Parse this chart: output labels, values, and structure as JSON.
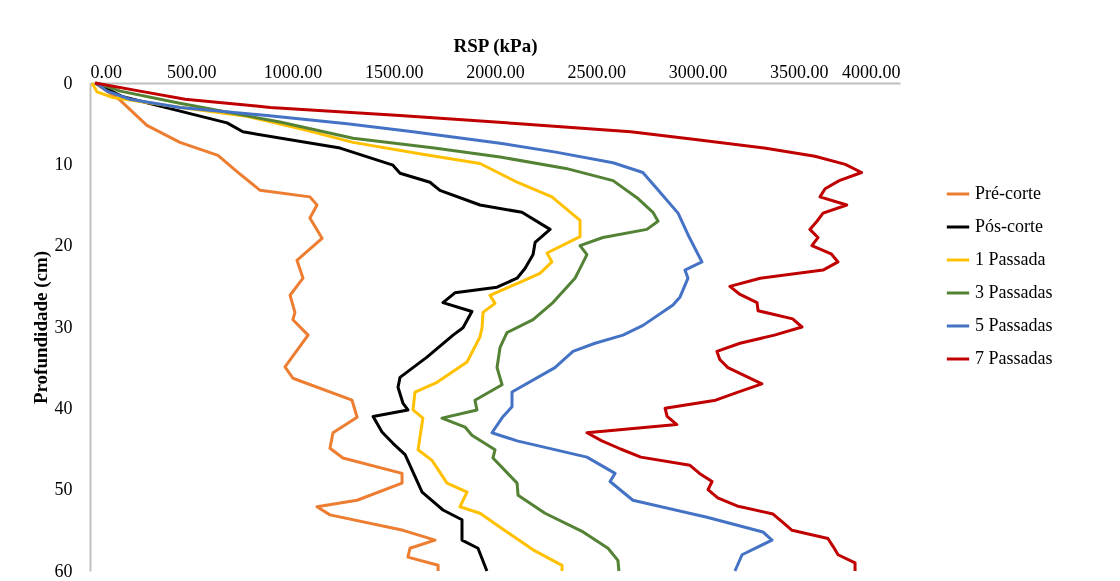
{
  "chart_data": {
    "type": "line",
    "xlabel": "RSP (kPa)",
    "ylabel": "Profundidade (cm)",
    "xlim": [
      0,
      4000
    ],
    "xticks": [
      {
        "value": 0,
        "label": "0.00"
      },
      {
        "value": 500,
        "label": "500.00"
      },
      {
        "value": 1000,
        "label": "1000.00"
      },
      {
        "value": 1500,
        "label": "1500.00"
      },
      {
        "value": 2000,
        "label": "2000.00"
      },
      {
        "value": 2500,
        "label": "2500.00"
      },
      {
        "value": 3000,
        "label": "3000.00"
      },
      {
        "value": 3500,
        "label": "3500.00"
      },
      {
        "value": 4000,
        "label": "4000.00"
      }
    ],
    "ylim": [
      60,
      0
    ],
    "yticks": [
      0,
      10,
      20,
      30,
      40,
      50,
      60
    ],
    "grid": false,
    "legend": "right",
    "marker": "none",
    "line_style": "solid",
    "series": [
      {
        "name": "Pré-corte",
        "color": "#ed7d31",
        "x": [
          25,
          148,
          281,
          444,
          632,
          726,
          840,
          1086,
          1121,
          1086,
          1146,
          1022,
          1052,
          988,
          1012,
          1002,
          1077,
          963,
          1002,
          1294,
          1319,
          1200,
          1185,
          1249,
          1541,
          1541,
          1319,
          1121,
          1185,
          1546,
          1704,
          1580,
          1570,
          1719,
          1719
        ],
        "values": [
          0,
          2.1,
          5.2,
          7.3,
          8.9,
          10.9,
          13.2,
          14,
          15,
          16.6,
          19.1,
          21.8,
          24,
          26.1,
          28.2,
          29.1,
          31,
          34.9,
          36.3,
          39,
          41.1,
          43,
          44.9,
          46.1,
          48,
          49.2,
          51.3,
          52.1,
          53.1,
          55,
          56.2,
          57.2,
          58.3,
          59.3,
          60
        ]
      },
      {
        "name": "Pós-corte",
        "color": "#000000",
        "x": [
          25,
          163,
          420,
          677,
          755,
          1235,
          1496,
          1531,
          1679,
          1728,
          1926,
          2133,
          2272,
          2198,
          2188,
          2148,
          2109,
          2010,
          1802,
          1743,
          1886,
          1842,
          1793,
          1664,
          1531,
          1521,
          1546,
          1570,
          1398,
          1442,
          1496,
          1556,
          1640,
          1743,
          1837,
          1837,
          1916,
          1960
        ],
        "values": [
          0,
          1.7,
          3.3,
          4.9,
          6,
          8,
          10.1,
          11.1,
          12.2,
          13.2,
          15,
          15.9,
          18,
          19.6,
          21.1,
          22.8,
          24,
          25.1,
          25.8,
          27,
          28.1,
          30.1,
          31,
          33.7,
          36.2,
          37.4,
          39.4,
          40.2,
          41,
          42.9,
          44.3,
          45.7,
          50.3,
          52.5,
          53.7,
          56.2,
          57.2,
          60
        ]
      },
      {
        "name": "1 Passada",
        "color": "#ffc000",
        "x": [
          10,
          35,
          114,
          450,
          775,
          1050,
          1299,
          1650,
          1926,
          2109,
          2281,
          2420,
          2420,
          2257,
          2281,
          2222,
          2123,
          1975,
          2000,
          1941,
          1936,
          1926,
          1862,
          1714,
          1605,
          1595,
          1644,
          1620,
          1689,
          1763,
          1862,
          1827,
          1926,
          2059,
          2188,
          2331,
          2331
        ],
        "values": [
          0,
          1.1,
          1.8,
          3,
          4.1,
          5.7,
          7.3,
          8.8,
          9.9,
          12.2,
          14,
          16.9,
          18.9,
          20.9,
          22,
          23.4,
          24.5,
          26.1,
          27.1,
          28.2,
          30.1,
          31.2,
          34.3,
          36.8,
          38,
          40.2,
          41.2,
          45.1,
          46.4,
          49.2,
          50.3,
          52.1,
          52.9,
          55.2,
          57.4,
          59.3,
          60
        ]
      },
      {
        "name": "3 Passadas",
        "color": "#548235",
        "x": [
          30,
          150,
          444,
          938,
          1299,
          1700,
          2025,
          2350,
          2583,
          2701,
          2780,
          2805,
          2750,
          2533,
          2420,
          2454,
          2420,
          2395,
          2286,
          2188,
          2059,
          2025,
          2010,
          2035,
          1901,
          1911,
          1738,
          1852,
          1886,
          2000,
          1990,
          2109,
          2114,
          2247,
          2435,
          2558,
          2607,
          2612
        ],
        "values": [
          0,
          1,
          2.5,
          4.8,
          6.8,
          8,
          9.1,
          10.5,
          12,
          14.1,
          15.9,
          17,
          18,
          19,
          20,
          21.1,
          22.8,
          24,
          27,
          29.1,
          30.7,
          32.5,
          35,
          37.1,
          39,
          40.2,
          41.2,
          42.3,
          43.3,
          45.1,
          46.1,
          49.2,
          50.7,
          52.9,
          55.2,
          57.2,
          58.7,
          60
        ]
      },
      {
        "name": "5 Passadas",
        "color": "#4472c4",
        "x": [
          30,
          84,
          198,
          444,
          874,
          1270,
          1595,
          2025,
          2300,
          2583,
          2730,
          2800,
          2904,
          2960,
          3022,
          2938,
          2953,
          2914,
          2879,
          2731,
          2632,
          2494,
          2385,
          2296,
          2084,
          2084,
          2040,
          1985,
          2109,
          2454,
          2593,
          2568,
          2681,
          3047,
          3323,
          3368,
          3220,
          3185
        ],
        "values": [
          0,
          1,
          2,
          3,
          4,
          5,
          6,
          7.4,
          8.5,
          9.8,
          11,
          13,
          16,
          19,
          22,
          23,
          24,
          26.3,
          27.3,
          29.8,
          31,
          32,
          33,
          35,
          38,
          39.8,
          41,
          43,
          44,
          46,
          48,
          49,
          51.3,
          53.4,
          55.2,
          56.2,
          58,
          60
        ]
      },
      {
        "name": "7 Passadas",
        "color": "#c00000",
        "x": [
          25,
          247,
          470,
          890,
          1530,
          2120,
          2670,
          3010,
          3330,
          3580,
          3730,
          3810,
          3700,
          3630,
          3605,
          3737,
          3620,
          3590,
          3555,
          3595,
          3565,
          3660,
          3694,
          3620,
          3310,
          3160,
          3210,
          3294,
          3299,
          3470,
          3516,
          3380,
          3210,
          3096,
          3110,
          3150,
          3318,
          3200,
          3090,
          2840,
          2850,
          2898,
          2454,
          2528,
          2620,
          2720,
          2963,
          3010,
          3072,
          3052,
          3100,
          3195,
          3373,
          3420,
          3467,
          3644,
          3670,
          3694,
          3778,
          3778
        ],
        "values": [
          0,
          1,
          2,
          3,
          4,
          5,
          6,
          7,
          8,
          9,
          10,
          11,
          12,
          13,
          14,
          15,
          16,
          17,
          18,
          19,
          20,
          21,
          22,
          23,
          24,
          25,
          26,
          27,
          28,
          29,
          30,
          31,
          32,
          33,
          34,
          35,
          37,
          38,
          39,
          40,
          41,
          42,
          43,
          44,
          45,
          46,
          47,
          48,
          49,
          50,
          51,
          52,
          53,
          54,
          55,
          56,
          57,
          58,
          59,
          60
        ]
      }
    ]
  }
}
